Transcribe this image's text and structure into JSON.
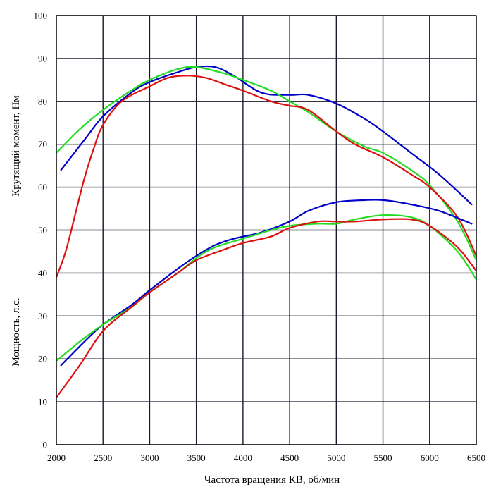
{
  "chart_data": {
    "type": "line",
    "title": "",
    "xlabel": "Частота вращения КВ, об/мин",
    "ylabel_top": "Крутящий момент, Нм",
    "ylabel_bottom": "Мощность, л.с.",
    "xlim": [
      2000,
      6500
    ],
    "ylim": [
      0,
      100
    ],
    "x_ticks": [
      "2000",
      "2500",
      "3000",
      "3500",
      "4000",
      "4500",
      "5000",
      "5500",
      "6000",
      "6500"
    ],
    "y_ticks": [
      "0",
      "10",
      "20",
      "30",
      "40",
      "50",
      "60",
      "70",
      "80",
      "90",
      "100"
    ],
    "grid": true,
    "legend": "none",
    "colors": {
      "blue": "#0000c8",
      "green": "#22dd22",
      "red": "#dd1111",
      "grid": "#1a1a2e",
      "frame": "#000000"
    },
    "series": [
      {
        "color": "blue",
        "group": "torque",
        "x": [
          2050,
          2300,
          2500,
          2800,
          3000,
          3300,
          3500,
          3700,
          3900,
          4200,
          4500,
          4700,
          5000,
          5300,
          5500,
          5800,
          6100,
          6450
        ],
        "y": [
          64,
          71,
          76.5,
          82,
          84.5,
          86.8,
          88,
          88,
          86,
          82,
          81.5,
          81.5,
          79.5,
          76,
          73,
          68,
          63,
          56
        ]
      },
      {
        "color": "green",
        "group": "torque",
        "x": [
          2000,
          2250,
          2500,
          2800,
          3000,
          3300,
          3500,
          3800,
          4000,
          4300,
          4500,
          4700,
          5000,
          5300,
          5500,
          5800,
          6000,
          6300,
          6500
        ],
        "y": [
          68,
          73.5,
          78,
          82.5,
          85,
          87.5,
          88,
          86.5,
          85,
          82.5,
          80,
          77.5,
          73,
          69.5,
          68,
          64,
          60.5,
          52,
          43
        ]
      },
      {
        "color": "red",
        "group": "torque",
        "x": [
          2000,
          2100,
          2200,
          2300,
          2400,
          2500,
          2700,
          3000,
          3200,
          3400,
          3600,
          3800,
          4000,
          4300,
          4500,
          4700,
          5000,
          5200,
          5500,
          5800,
          6000,
          6300,
          6500
        ],
        "y": [
          39,
          45,
          53.5,
          62,
          69,
          74.5,
          80,
          83.5,
          85.5,
          86,
          85.5,
          84,
          82.5,
          80,
          79,
          78,
          73,
          70,
          67,
          63,
          60,
          53,
          44
        ]
      },
      {
        "color": "blue",
        "group": "power",
        "x": [
          2050,
          2300,
          2500,
          2800,
          3000,
          3300,
          3500,
          3700,
          3900,
          4200,
          4500,
          4700,
          5000,
          5300,
          5500,
          5800,
          6100,
          6450
        ],
        "y": [
          18.5,
          24,
          28,
          32.5,
          36,
          41,
          44,
          46.5,
          48,
          49.5,
          52,
          54.5,
          56.5,
          57,
          57,
          56,
          54.5,
          51.5
        ]
      },
      {
        "color": "green",
        "group": "power",
        "x": [
          2000,
          2250,
          2500,
          2800,
          3000,
          3300,
          3500,
          3700,
          4000,
          4300,
          4500,
          4800,
          5000,
          5200,
          5500,
          5800,
          6000,
          6300,
          6500
        ],
        "y": [
          19.5,
          24,
          28,
          32,
          35.5,
          40,
          43.5,
          46,
          48,
          50,
          51,
          51.5,
          51.5,
          52.5,
          53.5,
          53,
          51,
          45,
          38.5
        ]
      },
      {
        "color": "red",
        "group": "power",
        "x": [
          2000,
          2250,
          2500,
          2800,
          3000,
          3300,
          3500,
          3800,
          4000,
          4300,
          4500,
          4800,
          5000,
          5200,
          5500,
          5800,
          6000,
          6300,
          6500
        ],
        "y": [
          11,
          18.5,
          26.5,
          32,
          35.5,
          40,
          43,
          45.5,
          47,
          48.5,
          50.5,
          52,
          52,
          52,
          52.5,
          52.5,
          51,
          46,
          40.5
        ]
      }
    ]
  }
}
